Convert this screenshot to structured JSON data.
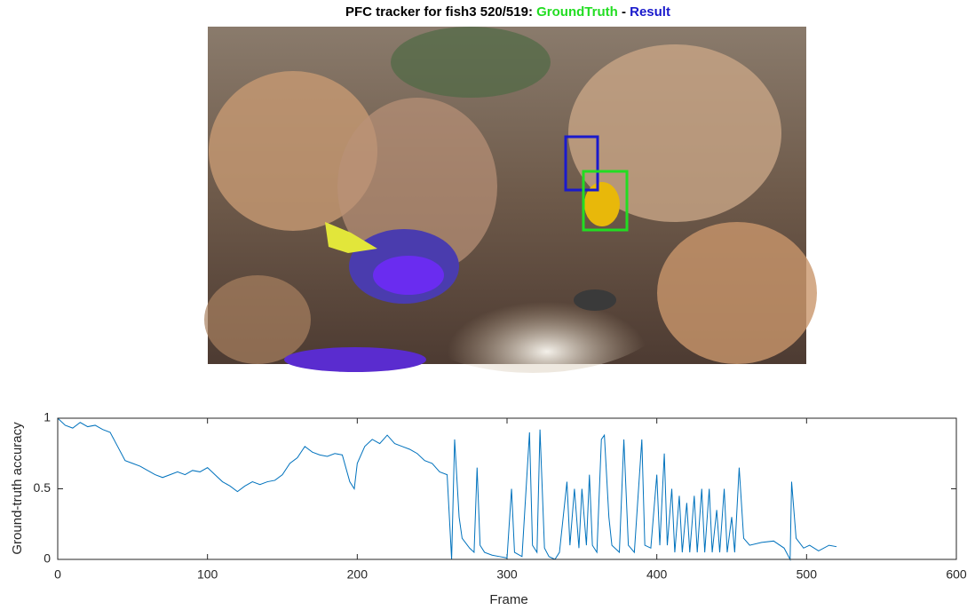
{
  "figure": {
    "title_prefix": "PFC tracker for fish3 520/519:",
    "title_ground_truth": "GroundTruth",
    "title_separator": "-",
    "title_result": "Result"
  },
  "chart_data": {
    "type": "line",
    "x_label": "Frame",
    "y_label": "Ground-truth accuracy",
    "color": "#0072bd",
    "xlim": [
      0,
      600
    ],
    "xticks": [
      0,
      100,
      200,
      300,
      400,
      500,
      600
    ],
    "ylim": [
      0,
      1
    ],
    "yticks": [
      0,
      0.5,
      1
    ],
    "x": [
      0,
      5,
      10,
      15,
      20,
      25,
      30,
      35,
      40,
      45,
      50,
      55,
      60,
      65,
      70,
      75,
      80,
      85,
      90,
      95,
      100,
      105,
      110,
      115,
      120,
      125,
      130,
      135,
      140,
      145,
      150,
      155,
      160,
      165,
      170,
      175,
      180,
      185,
      190,
      195,
      198,
      200,
      205,
      210,
      215,
      220,
      225,
      230,
      235,
      240,
      245,
      250,
      255,
      260,
      263,
      265,
      268,
      270,
      275,
      278,
      280,
      282,
      285,
      290,
      295,
      300,
      303,
      305,
      310,
      315,
      317,
      320,
      322,
      325,
      328,
      332,
      335,
      340,
      342,
      345,
      348,
      350,
      353,
      355,
      357,
      360,
      363,
      365,
      368,
      370,
      375,
      378,
      381,
      385,
      390,
      392,
      396,
      400,
      402,
      405,
      407,
      410,
      412,
      415,
      417,
      420,
      422,
      425,
      427,
      430,
      432,
      435,
      437,
      440,
      442,
      445,
      447,
      450,
      452,
      455,
      458,
      462,
      470,
      478,
      485,
      489,
      490,
      493,
      498,
      502,
      508,
      515,
      520
    ],
    "values": [
      1,
      0.95,
      0.93,
      0.97,
      0.94,
      0.95,
      0.92,
      0.9,
      0.8,
      0.7,
      0.68,
      0.66,
      0.63,
      0.6,
      0.58,
      0.6,
      0.62,
      0.6,
      0.63,
      0.62,
      0.65,
      0.6,
      0.55,
      0.52,
      0.48,
      0.52,
      0.55,
      0.53,
      0.55,
      0.56,
      0.6,
      0.68,
      0.72,
      0.8,
      0.76,
      0.74,
      0.73,
      0.75,
      0.74,
      0.55,
      0.5,
      0.68,
      0.8,
      0.85,
      0.82,
      0.88,
      0.82,
      0.8,
      0.78,
      0.75,
      0.7,
      0.68,
      0.62,
      0.6,
      0,
      0.85,
      0.3,
      0.15,
      0.08,
      0.05,
      0.65,
      0.1,
      0.05,
      0.03,
      0.02,
      0.01,
      0.5,
      0.05,
      0.02,
      0.9,
      0.1,
      0.05,
      0.92,
      0.08,
      0.02,
      0,
      0.05,
      0.55,
      0.1,
      0.5,
      0.08,
      0.5,
      0.1,
      0.6,
      0.1,
      0.05,
      0.85,
      0.88,
      0.3,
      0.1,
      0.05,
      0.85,
      0.1,
      0.05,
      0.85,
      0.1,
      0.08,
      0.6,
      0.1,
      0.75,
      0.1,
      0.5,
      0.05,
      0.45,
      0.05,
      0.4,
      0.05,
      0.45,
      0.05,
      0.5,
      0.05,
      0.5,
      0.05,
      0.35,
      0.05,
      0.5,
      0.05,
      0.3,
      0.05,
      0.65,
      0.15,
      0.1,
      0.12,
      0.13,
      0.08,
      0,
      0.55,
      0.15,
      0.08,
      0.1,
      0.06,
      0.1,
      0.09
    ]
  }
}
